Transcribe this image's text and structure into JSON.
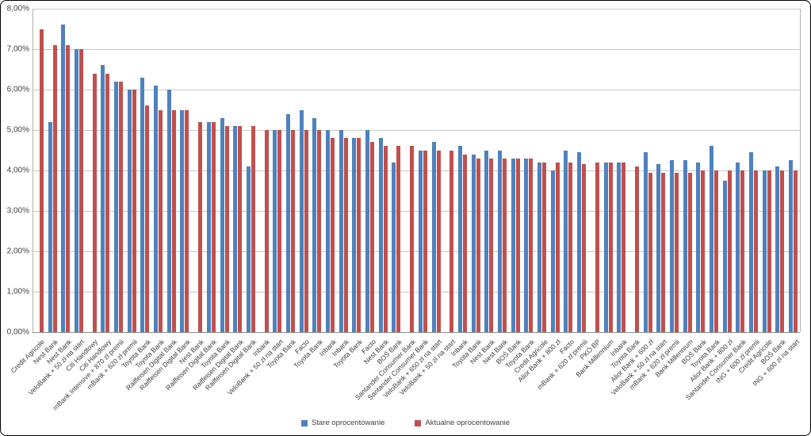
{
  "chart_data": {
    "type": "bar",
    "title": "",
    "xlabel": "",
    "ylabel": "",
    "ylim": [
      0,
      8
    ],
    "ytick_step": 1,
    "ytick_labels": [
      "0,00%",
      "1,00%",
      "2,00%",
      "3,00%",
      "4,00%",
      "5,00%",
      "6,00%",
      "7,00%",
      "8,00%"
    ],
    "grid": true,
    "legend_position": "bottom",
    "categories": [
      "Credit Agricole",
      "Nest Bank",
      "Nest Bank",
      "VeloBank + 50 zł na start",
      "Citi Handlowy",
      "Citi Handlowy",
      "mBank Intensive + 870 zł premii",
      "mBank + 620 zł premii",
      "Toyota Bank",
      "Toyota Bank",
      "Raiffeisen Digital Bank",
      "Raiffeisen Digital Bank",
      "Nest Bank",
      "Raiffeisen Digital Bank",
      "Toyota Bank",
      "Raiffeisen Digital Bank",
      "Raiffeisen Digital Bank",
      "Inbank",
      "VeloBank + 50 zł na start",
      "Toyota Bank",
      "Facto",
      "Toyota Bank",
      "Inbank",
      "Inbank",
      "Toyota Bank",
      "Facto",
      "Nest Bank",
      "BOŚ Bank",
      "Santander Consumer Bank",
      "Santander Consumer Bank",
      "VeloBank + 650 zł na start",
      "VeloBank + 50 zł na start",
      "Inbank",
      "Toyota Bank",
      "Nest Bank",
      "Nest Bank",
      "BOŚ Bank",
      "Toyota Bank",
      "Credit Agricole",
      "Alior Bank + 800 zł",
      "Facto",
      "mBank + 620 zł premii",
      "PKO BP",
      "Bank Millennium",
      "Inbank",
      "Toyota Bank",
      "Alior Bank + 600 zł",
      "VeloBank + 50 zł na start",
      "mBank + 620 zł premii",
      "Bank Millennium",
      "BOŚ Bank",
      "Toyota Bank",
      "Alior Bank + 800 zł",
      "Santander Consumer Bank",
      "ING + 600 zł premii",
      "Credit Agricole",
      "BOŚ Bank",
      "ING + 600 zł na start"
    ],
    "series": [
      {
        "name": "Stare oprocentowanie",
        "color": "#4F81BD",
        "values": [
          null,
          5.2,
          7.6,
          7.0,
          null,
          6.6,
          6.2,
          6.0,
          6.3,
          6.1,
          6.0,
          5.5,
          null,
          5.2,
          5.3,
          5.1,
          4.1,
          null,
          5.0,
          5.4,
          5.5,
          5.3,
          5.0,
          5.0,
          4.8,
          5.0,
          4.8,
          4.2,
          null,
          4.5,
          4.7,
          null,
          4.6,
          4.4,
          4.5,
          4.5,
          4.3,
          4.3,
          4.2,
          4.0,
          4.5,
          4.45,
          null,
          4.2,
          4.2,
          null,
          4.45,
          4.15,
          4.25,
          4.25,
          4.2,
          4.6,
          3.75,
          4.2,
          4.45,
          4.0,
          4.1,
          4.25
        ]
      },
      {
        "name": "Aktualne oprocentowanie",
        "color": "#C0504D",
        "values": [
          7.5,
          7.1,
          7.1,
          7.0,
          6.4,
          6.4,
          6.2,
          6.0,
          5.6,
          5.5,
          5.5,
          5.5,
          5.2,
          5.2,
          5.1,
          5.1,
          5.1,
          5.0,
          5.0,
          5.0,
          5.0,
          5.0,
          4.8,
          4.8,
          4.8,
          4.7,
          4.6,
          4.6,
          4.6,
          4.5,
          4.5,
          4.5,
          4.4,
          4.3,
          4.3,
          4.3,
          4.3,
          4.3,
          4.2,
          4.2,
          4.2,
          4.15,
          4.2,
          4.2,
          4.2,
          4.1,
          3.95,
          3.95,
          3.95,
          3.95,
          4.0,
          4.0,
          4.0,
          4.0,
          4.0,
          4.0,
          4.0,
          4.0
        ]
      }
    ]
  }
}
